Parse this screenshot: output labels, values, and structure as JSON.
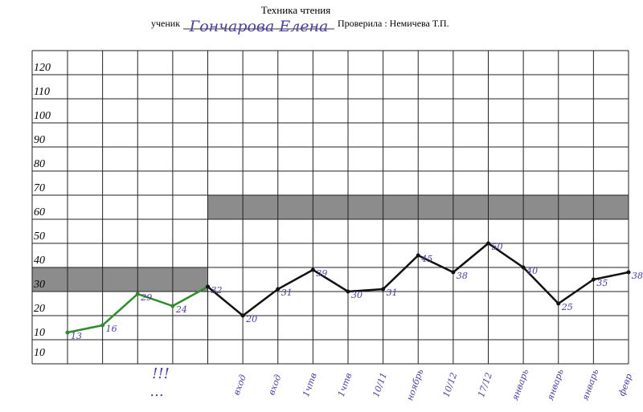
{
  "chart_data": {
    "type": "line",
    "title": "Техника чтения",
    "student_label": "ученик",
    "student_name": "Гончарова Елена",
    "checker": "Проверила : Немичева Т.П.",
    "categories": [
      null,
      null,
      null,
      null,
      null,
      "вход",
      "вход",
      "1чтв",
      "1чтв",
      "10/11",
      "ноябрь",
      "10/12",
      "17/12",
      "январь",
      "январь",
      "январь",
      "февр"
    ],
    "series": [
      {
        "color": "#2e8b2e",
        "values": [
          13,
          16,
          29,
          24,
          32,
          null,
          null,
          null,
          null,
          null,
          null,
          null,
          null,
          null,
          null,
          null,
          null
        ]
      },
      {
        "color": "#111111",
        "values": [
          null,
          null,
          null,
          null,
          32,
          20,
          31,
          39,
          30,
          31,
          45,
          38,
          50,
          40,
          25,
          35,
          38
        ]
      }
    ],
    "bands": [
      {
        "from": 30,
        "to": 40,
        "first_category": 0,
        "last_category": 4
      },
      {
        "from": 60,
        "to": 70,
        "first_category": 4,
        "last_category": 16
      }
    ],
    "ylim": [
      0,
      130
    ],
    "yticks": [
      10,
      20,
      30,
      40,
      50,
      60,
      70,
      80,
      90,
      100,
      110,
      120
    ],
    "extra_y_label": "10",
    "annotations": [
      "!!!",
      "..."
    ],
    "grid": true
  }
}
